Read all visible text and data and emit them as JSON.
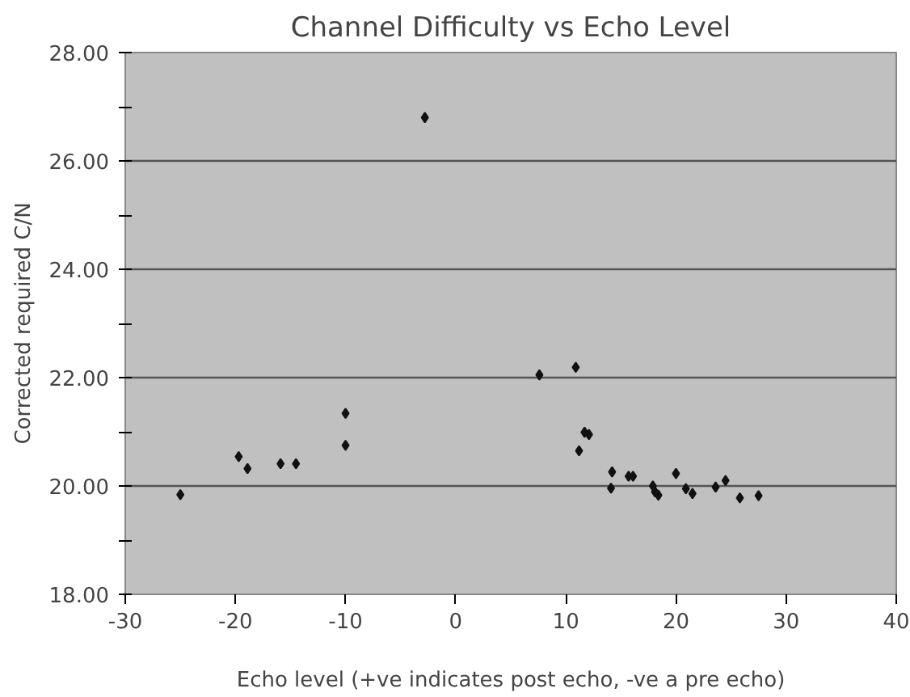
{
  "chart_data": {
    "type": "scatter",
    "title": "Channel Difficulty vs Echo Level",
    "xlabel": "Echo level (+ve indicates post echo, -ve a pre echo)",
    "ylabel": "Corrected required C/N",
    "x": [
      -25.0,
      -19.7,
      -18.9,
      -15.9,
      -14.5,
      -10.0,
      -10.0,
      -2.8,
      7.6,
      10.9,
      11.7,
      12.1,
      11.2,
      14.2,
      14.1,
      15.7,
      16.1,
      17.9,
      18.1,
      18.4,
      20.0,
      20.9,
      21.5,
      23.6,
      24.5,
      25.8,
      27.5
    ],
    "values": [
      19.84,
      20.54,
      20.32,
      20.41,
      20.41,
      21.34,
      20.75,
      26.8,
      22.05,
      22.19,
      20.99,
      20.95,
      20.65,
      20.26,
      19.96,
      20.18,
      20.18,
      20.0,
      19.89,
      19.83,
      20.23,
      19.95,
      19.86,
      19.98,
      20.1,
      19.78,
      19.82
    ],
    "color": "#111111",
    "marker": "diamond",
    "xlim": [
      -30,
      40
    ],
    "xticks": [
      -30,
      -20,
      -10,
      0,
      10,
      20,
      30,
      40
    ],
    "ylim": [
      18,
      28
    ],
    "yticks": [
      {
        "value": 18,
        "label": "18.00"
      },
      {
        "value": 19,
        "label": null
      },
      {
        "value": 20,
        "label": "20.00"
      },
      {
        "value": 21,
        "label": null
      },
      {
        "value": 22,
        "label": "22.00"
      },
      {
        "value": 23,
        "label": null
      },
      {
        "value": 24,
        "label": "24.00"
      },
      {
        "value": 25,
        "label": null
      },
      {
        "value": 26,
        "label": "26.00"
      },
      {
        "value": 27,
        "label": null
      },
      {
        "value": 28,
        "label": "28.00"
      }
    ],
    "grid": "y"
  }
}
